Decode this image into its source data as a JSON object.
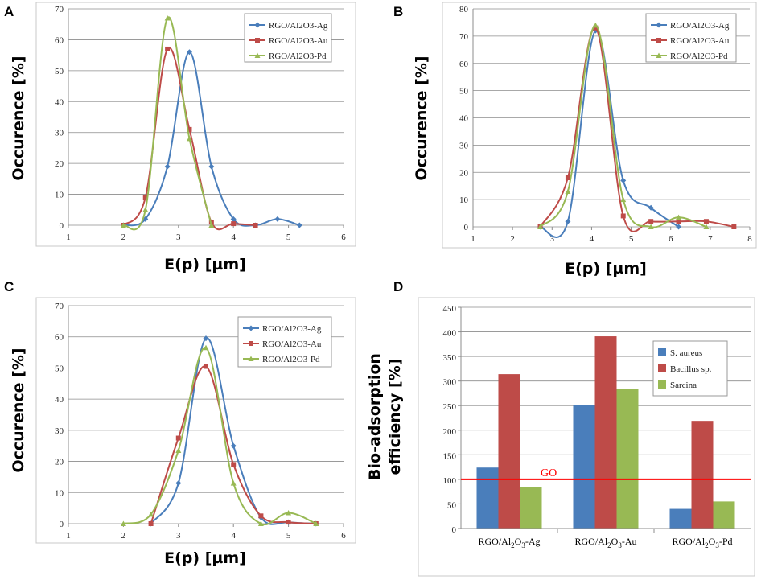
{
  "colors": {
    "ag": "#4a7ebb",
    "au": "#be4b48",
    "pd": "#98b954",
    "line_go": "#ff0000"
  },
  "chart_data": [
    {
      "panel": "A",
      "type": "line",
      "xlabel": "E(p) [µm]",
      "ylabel": "Occurence [%]",
      "xlim": [
        1,
        6
      ],
      "ylim": [
        0,
        70
      ],
      "xticks": [
        "1",
        "2",
        "3",
        "4",
        "5",
        "6"
      ],
      "yticks": [
        "0",
        "10",
        "20",
        "30",
        "40",
        "50",
        "60",
        "70"
      ],
      "legend": [
        "RGO/Al2O3-Ag",
        "RGO/Al2O3-Au",
        "RGO/Al2O3-Pd"
      ],
      "series": [
        {
          "name": "RGO/Al2O3-Ag",
          "x": [
            2,
            2.4,
            2.8,
            3.2,
            3.6,
            4.0,
            4.4,
            4.8,
            5.2
          ],
          "y": [
            0,
            2,
            19,
            56,
            19,
            2,
            0,
            2,
            0
          ]
        },
        {
          "name": "RGO/Al2O3-Au",
          "x": [
            2,
            2.4,
            2.8,
            3.2,
            3.6,
            4.0,
            4.4
          ],
          "y": [
            0,
            9,
            57,
            31,
            1,
            0.5,
            0
          ]
        },
        {
          "name": "RGO/Al2O3-Pd",
          "x": [
            2,
            2.4,
            2.8,
            3.2,
            3.6
          ],
          "y": [
            0,
            5,
            67,
            28,
            0
          ]
        }
      ]
    },
    {
      "panel": "B",
      "type": "line",
      "xlabel": "E(p) [µm]",
      "ylabel": "Occurence [%]",
      "xlim": [
        1,
        8
      ],
      "ylim": [
        0,
        80
      ],
      "xticks": [
        "1",
        "2",
        "3",
        "4",
        "5",
        "6",
        "7",
        "8"
      ],
      "yticks": [
        "0",
        "10",
        "20",
        "30",
        "40",
        "50",
        "60",
        "70",
        "80"
      ],
      "legend": [
        "RGO/Al2O3-Ag",
        "RGO/Al2O3-Au",
        "RGO/Al2O3-Pd"
      ],
      "series": [
        {
          "name": "RGO/Al2O3-Ag",
          "x": [
            2.7,
            3.4,
            4.1,
            4.8,
            5.5,
            6.2
          ],
          "y": [
            0,
            2,
            72,
            17,
            7,
            0
          ]
        },
        {
          "name": "RGO/Al2O3-Au",
          "x": [
            2.7,
            3.4,
            4.1,
            4.8,
            5.5,
            6.2,
            6.9,
            7.6
          ],
          "y": [
            0,
            18,
            73,
            4,
            2,
            2,
            2,
            0
          ]
        },
        {
          "name": "RGO/Al2O3-Pd",
          "x": [
            2.7,
            3.4,
            4.1,
            4.8,
            5.5,
            6.2,
            6.9
          ],
          "y": [
            0,
            13,
            74,
            10,
            0,
            3.5,
            0
          ]
        }
      ]
    },
    {
      "panel": "C",
      "type": "line",
      "xlabel": "E(p) [µm]",
      "ylabel": "Occurence [%]",
      "xlim": [
        1,
        6
      ],
      "ylim": [
        0,
        70
      ],
      "xticks": [
        "1",
        "2",
        "3",
        "4",
        "5",
        "6"
      ],
      "yticks": [
        "0",
        "10",
        "20",
        "30",
        "40",
        "50",
        "60",
        "70"
      ],
      "legend": [
        "RGO/Al2O3-Ag",
        "RGO/Al2O3-Au",
        "RGO/Al2O3-Pd"
      ],
      "series": [
        {
          "name": "RGO/Al2O3-Ag",
          "x": [
            2.5,
            3.0,
            3.5,
            4.0,
            4.5,
            5.0,
            5.5
          ],
          "y": [
            0,
            13,
            59.5,
            25,
            2,
            0.5,
            0
          ]
        },
        {
          "name": "RGO/Al2O3-Au",
          "x": [
            2.5,
            3.0,
            3.5,
            4.0,
            4.5,
            5.0,
            5.5
          ],
          "y": [
            0,
            27.5,
            50.5,
            19,
            2.5,
            0.5,
            0
          ]
        },
        {
          "name": "RGO/Al2O3-Pd",
          "x": [
            2.0,
            2.5,
            3.0,
            3.5,
            4.0,
            4.5,
            5.0,
            5.5
          ],
          "y": [
            0,
            3,
            23.5,
            56.5,
            13,
            0,
            3.5,
            0
          ]
        }
      ]
    },
    {
      "panel": "D",
      "type": "bar",
      "ylabel": "Bio-adsorption efficiency [%]",
      "ylabel_lines": [
        "Bio-adsorption",
        "efficiency [%]"
      ],
      "ylim": [
        0,
        450
      ],
      "yticks": [
        "0",
        "50",
        "100",
        "150",
        "200",
        "250",
        "300",
        "350",
        "400",
        "450"
      ],
      "categories": [
        {
          "base": "RGO/Al",
          "s1": "2",
          "mid": "O",
          "s2": "3",
          "tail": "-Ag"
        },
        {
          "base": "RGO/Al",
          "s1": "2",
          "mid": "O",
          "s2": "3",
          "tail": "-Au"
        },
        {
          "base": "RGO/Al",
          "s1": "2",
          "mid": "O",
          "s2": "3",
          "tail": "-Pd"
        }
      ],
      "series": [
        {
          "name": "S. aureus",
          "values": [
            124,
            251,
            40
          ]
        },
        {
          "name": "Bacillus sp.",
          "values": [
            314,
            391,
            219
          ]
        },
        {
          "name": "Sarcina",
          "values": [
            85,
            284,
            55
          ]
        }
      ],
      "reference_line": {
        "label": "GO",
        "value": 100
      }
    }
  ]
}
